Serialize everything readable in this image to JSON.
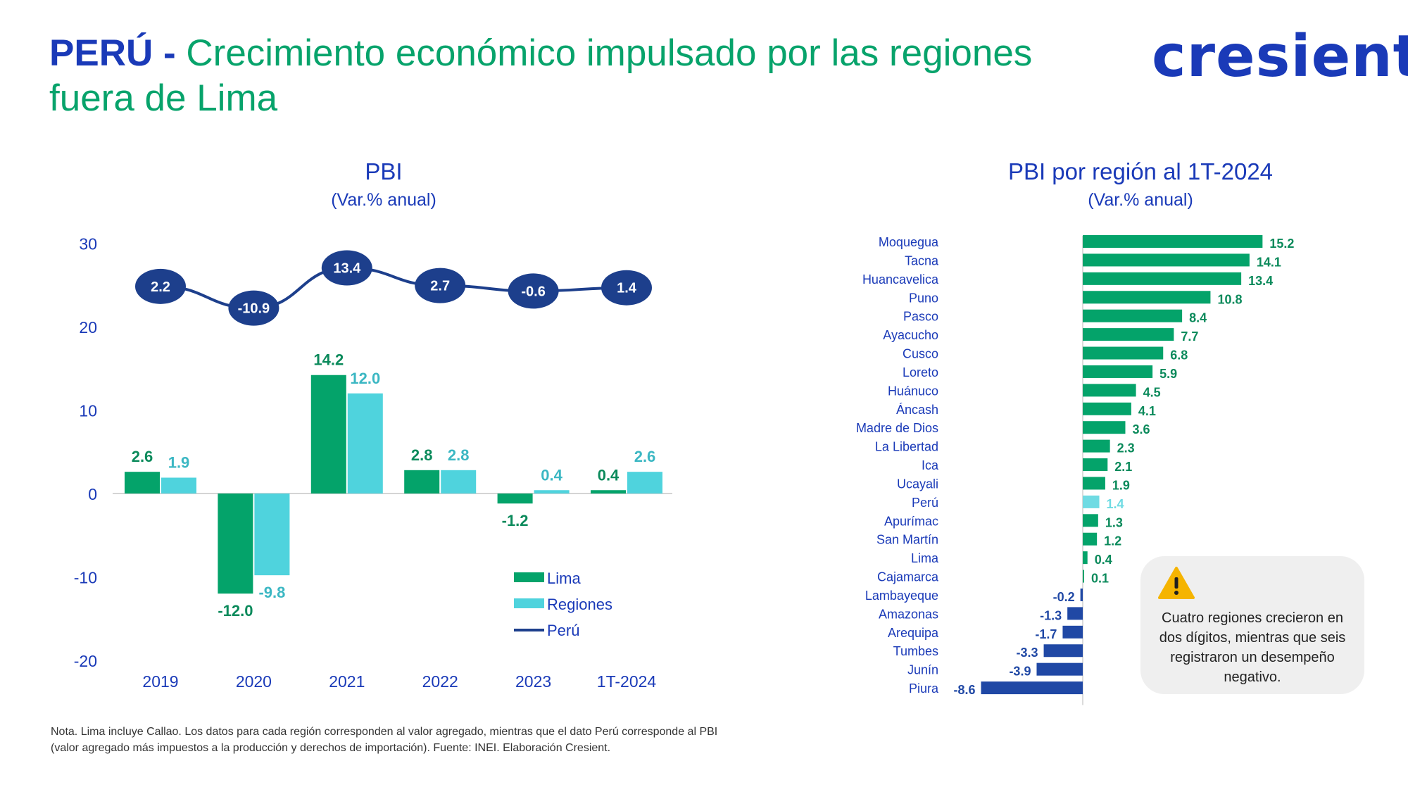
{
  "title": {
    "country": "PERÚ",
    "dash": "-",
    "line1": "Crecimiento económico impulsado por las regiones",
    "line2": "fuera de Lima"
  },
  "logo": {
    "text": "cresient"
  },
  "colors": {
    "lima": "#04a36a",
    "regiones": "#4fd3dd",
    "peru": "#1d3f8c",
    "negative": "#2048a5",
    "axis_text": "#1a3ab8",
    "peru_region_bar": "#6fdbe3"
  },
  "chart_data": [
    {
      "type": "bar",
      "title": "PBI",
      "subtitle": "(Var.% anual)",
      "categories": [
        "2019",
        "2020",
        "2021",
        "2022",
        "2023",
        "1T-2024"
      ],
      "ylim": [
        -20,
        30
      ],
      "yticks": [
        "30",
        "20",
        "10",
        "0",
        "-10",
        "-20"
      ],
      "series": [
        {
          "name": "Lima",
          "kind": "bar",
          "values": [
            2.6,
            -12.0,
            14.2,
            2.8,
            -1.2,
            0.4
          ],
          "labels": [
            "2.6",
            "-12.0",
            "14.2",
            "2.8",
            "-1.2",
            "0.4"
          ]
        },
        {
          "name": "Regiones",
          "kind": "bar",
          "values": [
            1.9,
            -9.8,
            12.0,
            2.8,
            0.4,
            2.6
          ],
          "labels": [
            "1.9",
            "-9.8",
            "12.0",
            "2.8",
            "0.4",
            "2.6"
          ]
        },
        {
          "name": "Perú",
          "kind": "line",
          "values": [
            2.2,
            -10.9,
            13.4,
            2.7,
            -0.6,
            1.4
          ],
          "labels": [
            "2.2",
            "-10.9",
            "13.4",
            "2.7",
            "-0.6",
            "1.4"
          ]
        }
      ],
      "legend": [
        "Lima",
        "Regiones",
        "Perú"
      ]
    },
    {
      "type": "bar",
      "orientation": "horizontal",
      "title": "PBI por región al 1T-2024",
      "subtitle": "(Var.% anual)",
      "categories": [
        "Moquegua",
        "Tacna",
        "Huancavelica",
        "Puno",
        "Pasco",
        "Ayacucho",
        "Cusco",
        "Loreto",
        "Huánuco",
        "Áncash",
        "Madre de Dios",
        "La Libertad",
        "Ica",
        "Ucayali",
        "Perú",
        "Apurímac",
        "San Martín",
        "Lima",
        "Cajamarca",
        "Lambayeque",
        "Amazonas",
        "Arequipa",
        "Tumbes",
        "Junín",
        "Piura"
      ],
      "values": [
        15.2,
        14.1,
        13.4,
        10.8,
        8.4,
        7.7,
        6.8,
        5.9,
        4.5,
        4.1,
        3.6,
        2.3,
        2.1,
        1.9,
        1.4,
        1.3,
        1.2,
        0.4,
        0.1,
        -0.2,
        -1.3,
        -1.7,
        -3.3,
        -3.9,
        -8.6
      ],
      "labels": [
        "15.2",
        "14.1",
        "13.4",
        "10.8",
        "8.4",
        "7.7",
        "6.8",
        "5.9",
        "4.5",
        "4.1",
        "3.6",
        "2.3",
        "2.1",
        "1.9",
        "1.4",
        "1.3",
        "1.2",
        "0.4",
        "0.1",
        "-0.2",
        "-1.3",
        "-1.7",
        "-3.3",
        "-3.9",
        "-8.6"
      ],
      "highlight": "Perú"
    }
  ],
  "callout": {
    "icon": "warning-icon",
    "text": "Cuatro regiones crecieron en dos dígitos, mientras que seis registraron un desempeño negativo."
  },
  "note": {
    "line1": "Nota. Lima incluye Callao. Los datos para cada región corresponden al valor agregado, mientras que el dato Perú corresponde al PBI",
    "line2": "(valor agregado más impuestos a la producción y derechos de importación). Fuente: INEI.  Elaboración Cresient."
  }
}
